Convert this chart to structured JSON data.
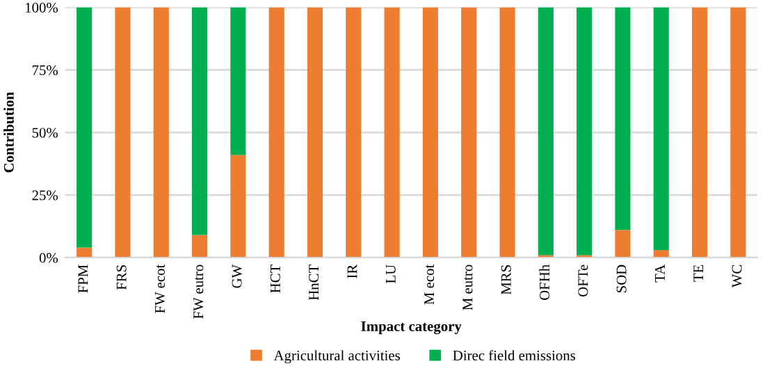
{
  "chart_data": {
    "type": "bar",
    "stacked": true,
    "xlabel": "Impact category",
    "ylabel": "Contribution",
    "categories": [
      "FPM",
      "FRS",
      "FW ecot",
      "FW eutro",
      "GW",
      "HCT",
      "HnCT",
      "IR",
      "LU",
      "M ecot",
      "M eutro",
      "MRS",
      "OFHh",
      "OFTe",
      "SOD",
      "TA",
      "TE",
      "WC"
    ],
    "series": [
      {
        "name": "Agricultural activities",
        "color": "#ed7d31",
        "values": [
          4,
          100,
          100,
          9,
          41,
          100,
          100,
          100,
          100,
          100,
          100,
          100,
          1,
          1,
          11,
          3,
          100,
          100
        ]
      },
      {
        "name": "Direc field emissions",
        "color": "#00b050",
        "values": [
          96,
          0,
          0,
          91,
          59,
          0,
          0,
          0,
          0,
          0,
          0,
          0,
          99,
          99,
          89,
          97,
          0,
          0
        ]
      }
    ],
    "ylim": [
      0,
      100
    ],
    "yticks": [
      {
        "value": 0,
        "label": "0%"
      },
      {
        "value": 25,
        "label": "25%"
      },
      {
        "value": 50,
        "label": "50%"
      },
      {
        "value": 75,
        "label": "75%"
      },
      {
        "value": 100,
        "label": "100%"
      }
    ],
    "grid": "y",
    "legend": "bottom"
  }
}
